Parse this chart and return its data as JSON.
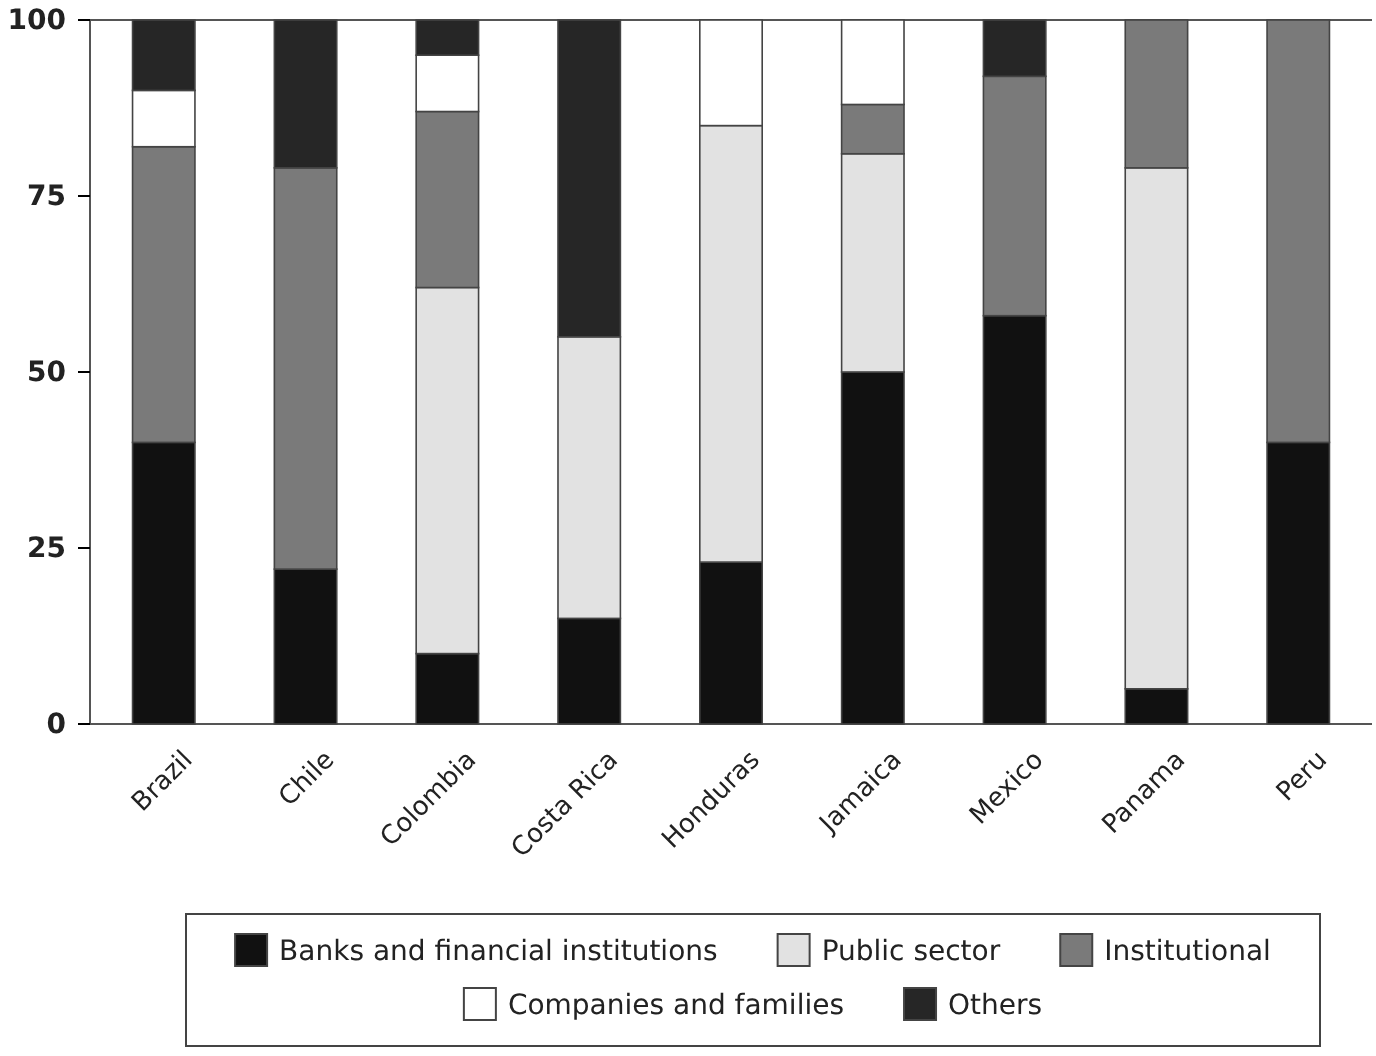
{
  "chart_data": {
    "type": "bar",
    "stacked": true,
    "categories": [
      "Brazil",
      "Chile",
      "Colombia",
      "Costa Rica",
      "Honduras",
      "Jamaica",
      "Mexico",
      "Panama",
      "Peru"
    ],
    "series": [
      {
        "name": "Banks and financial institutions",
        "color": "#111111",
        "values": [
          40,
          22,
          10,
          15,
          23,
          50,
          58,
          5,
          40
        ]
      },
      {
        "name": "Public sector",
        "color": "#e2e2e2",
        "values": [
          0,
          0,
          52,
          40,
          62,
          31,
          0,
          74,
          0
        ]
      },
      {
        "name": "Institutional",
        "color": "#7a7a7a",
        "values": [
          42,
          57,
          25,
          0,
          0,
          7,
          34,
          21,
          60
        ]
      },
      {
        "name": "Companies and families",
        "color": "#ffffff",
        "values": [
          8,
          0,
          8,
          0,
          15,
          12,
          0,
          0,
          0
        ]
      },
      {
        "name": "Others",
        "color": "#262626",
        "values": [
          10,
          21,
          5,
          45,
          0,
          0,
          8,
          0,
          0
        ]
      }
    ],
    "ylim": [
      0,
      100
    ],
    "yticks": [
      0,
      25,
      50,
      75,
      100
    ],
    "grid": false,
    "legend": "bottom"
  }
}
